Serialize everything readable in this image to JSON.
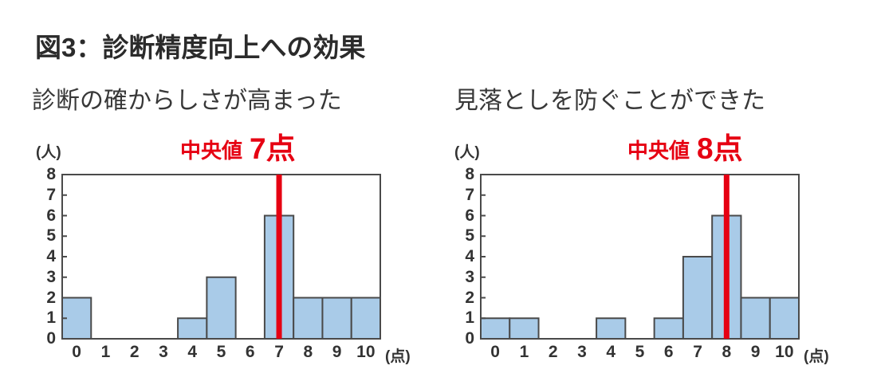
{
  "figure_title": "図3：診断精度向上への効果",
  "colors": {
    "accent_red": "#e60012",
    "bar_fill": "#a9cbe8",
    "axis": "#4a4a4a",
    "text_dark": "#2b2b2b"
  },
  "chart_data": [
    {
      "type": "bar",
      "title": "診断の確からしさが高まった",
      "categories": [
        "0",
        "1",
        "2",
        "3",
        "4",
        "5",
        "6",
        "7",
        "8",
        "9",
        "10"
      ],
      "values": [
        2,
        0,
        0,
        0,
        1,
        3,
        0,
        6,
        2,
        2,
        2
      ],
      "xlabel": "(点)",
      "ylabel": "(人)",
      "ylim": [
        0,
        8
      ],
      "ytick_step": 1,
      "grid": false,
      "median_x": 7,
      "median_prefix": "中央値",
      "median_value": "7点"
    },
    {
      "type": "bar",
      "title": "見落としを防ぐことができた",
      "categories": [
        "0",
        "1",
        "2",
        "3",
        "4",
        "5",
        "6",
        "7",
        "8",
        "9",
        "10"
      ],
      "values": [
        1,
        1,
        0,
        0,
        1,
        0,
        1,
        4,
        6,
        2,
        2
      ],
      "xlabel": "(点)",
      "ylabel": "(人)",
      "ylim": [
        0,
        8
      ],
      "ytick_step": 1,
      "grid": false,
      "median_x": 8,
      "median_prefix": "中央値",
      "median_value": "8点"
    }
  ]
}
